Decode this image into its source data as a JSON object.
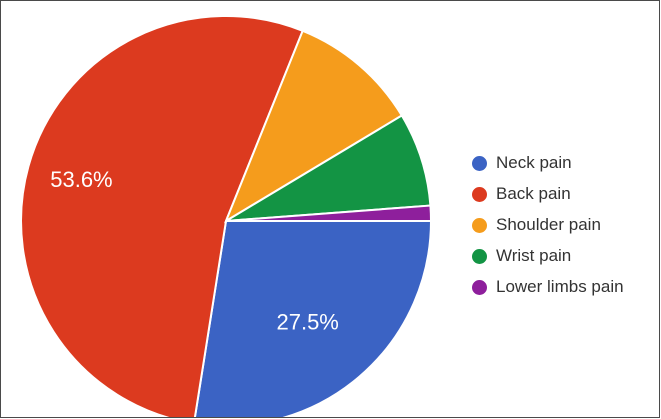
{
  "chart_data": {
    "type": "pie",
    "categories": [
      "Neck pain",
      "Back pain",
      "Shoulder pain",
      "Wrist pain",
      "Lower limbs pain"
    ],
    "values": [
      27.5,
      53.6,
      10.3,
      7.4,
      1.2
    ],
    "colors": [
      "#3b63c4",
      "#dc3a1f",
      "#f59c1c",
      "#139444",
      "#8e1f9c"
    ],
    "data_labels": [
      "27.5%",
      "53.6%",
      "",
      "",
      ""
    ],
    "label_color": "#ffffff",
    "start_angle_deg": 0,
    "direction": "clockwise",
    "legend_position": "right"
  }
}
